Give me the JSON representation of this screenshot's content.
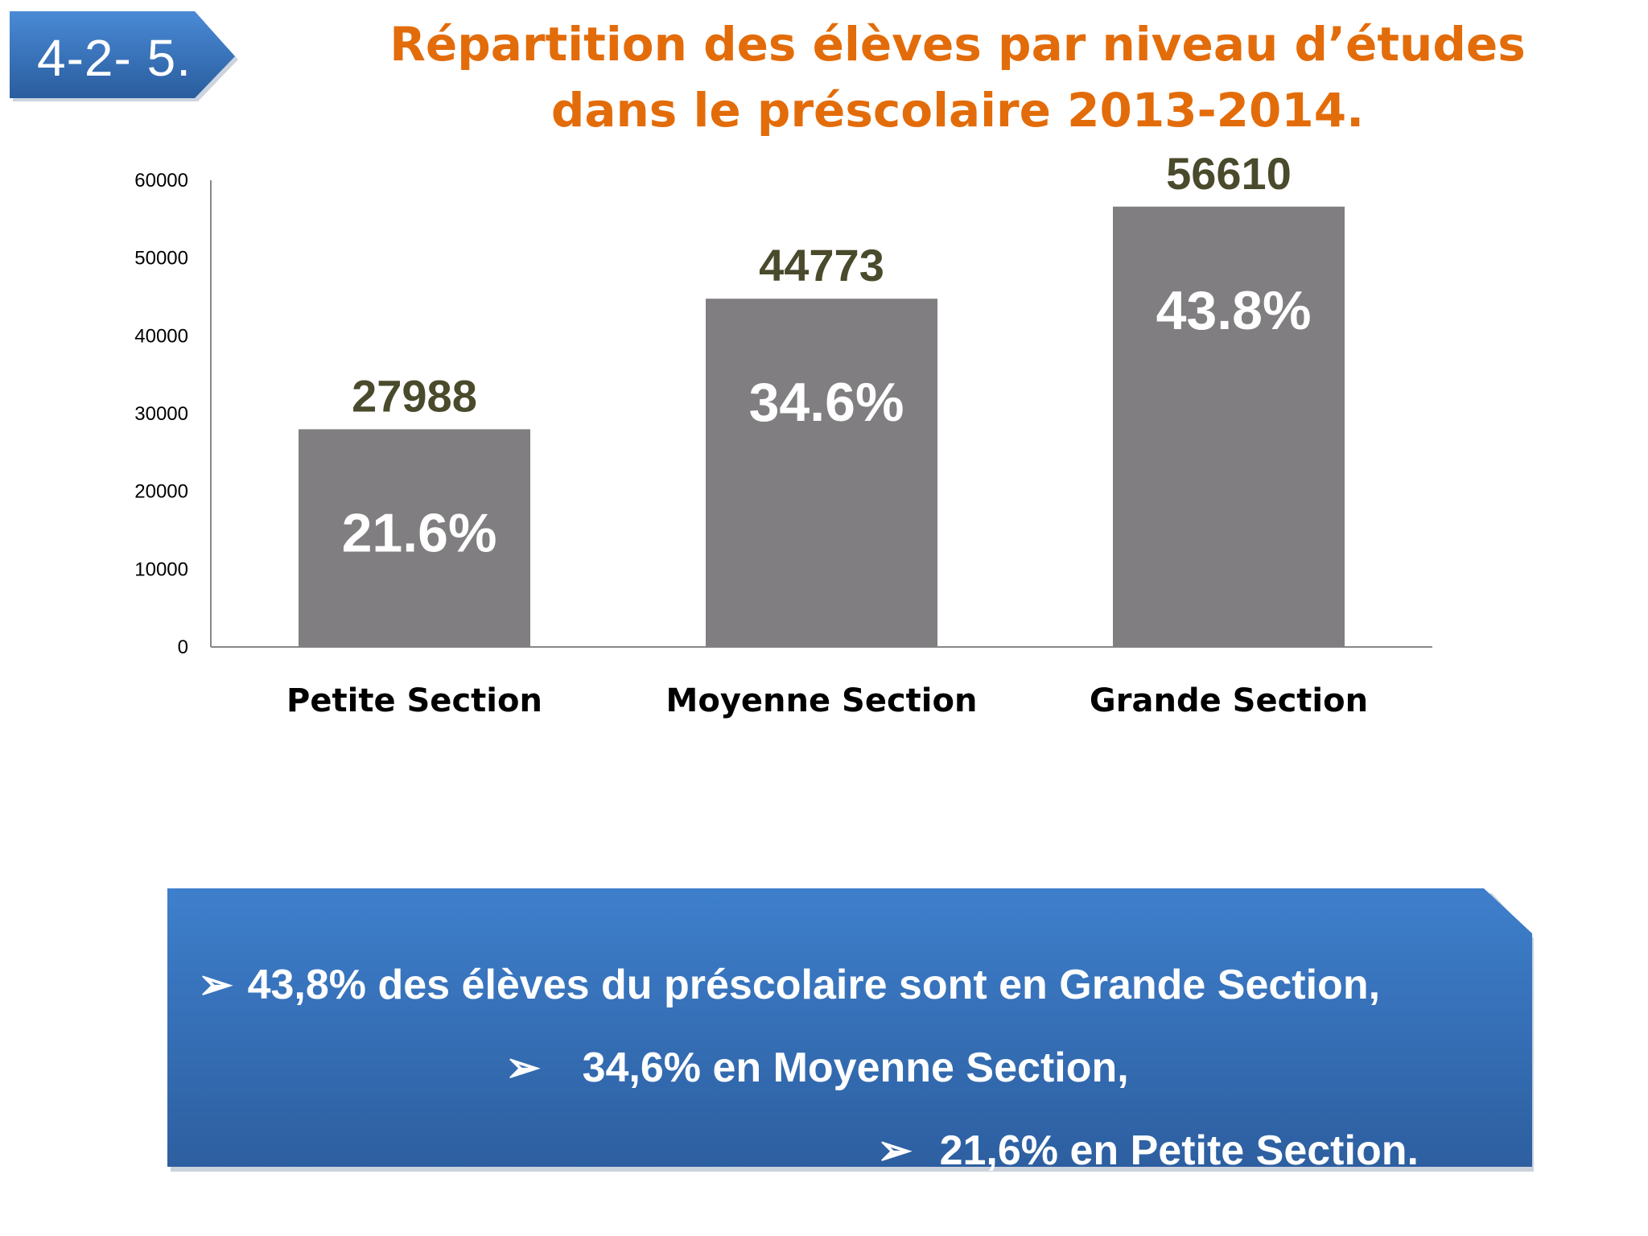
{
  "badge": {
    "label": "4-2- 5."
  },
  "title": "Répartition des élèves par niveau d’études dans le préscolaire 2013-2014.",
  "colors": {
    "title": "#e36c0a",
    "bar": "#807e80",
    "value_label": "#4a4a2c",
    "pct_label": "#ffffff",
    "box_top": "#3e7fcc",
    "box_bottom": "#2d5fa0"
  },
  "chart_data": {
    "type": "bar",
    "categories": [
      "Petite Section",
      "Moyenne Section",
      "Grande Section"
    ],
    "values": [
      27988,
      44773,
      56610
    ],
    "value_labels": [
      "27988",
      "44773",
      "56610"
    ],
    "percent_labels": [
      "21.6%",
      "34.6%",
      "43.8%"
    ],
    "ylim": [
      0,
      60000
    ],
    "yticks": [
      "0",
      "10000",
      "20000",
      "30000",
      "40000",
      "50000",
      "60000"
    ],
    "grid": false,
    "legend": "none"
  },
  "summary": {
    "lines": [
      "43,8% des élèves du préscolaire sont en Grande Section,",
      "34,6% en Moyenne Section,",
      "21,6% en Petite Section."
    ],
    "bullet_icon": "➢"
  }
}
